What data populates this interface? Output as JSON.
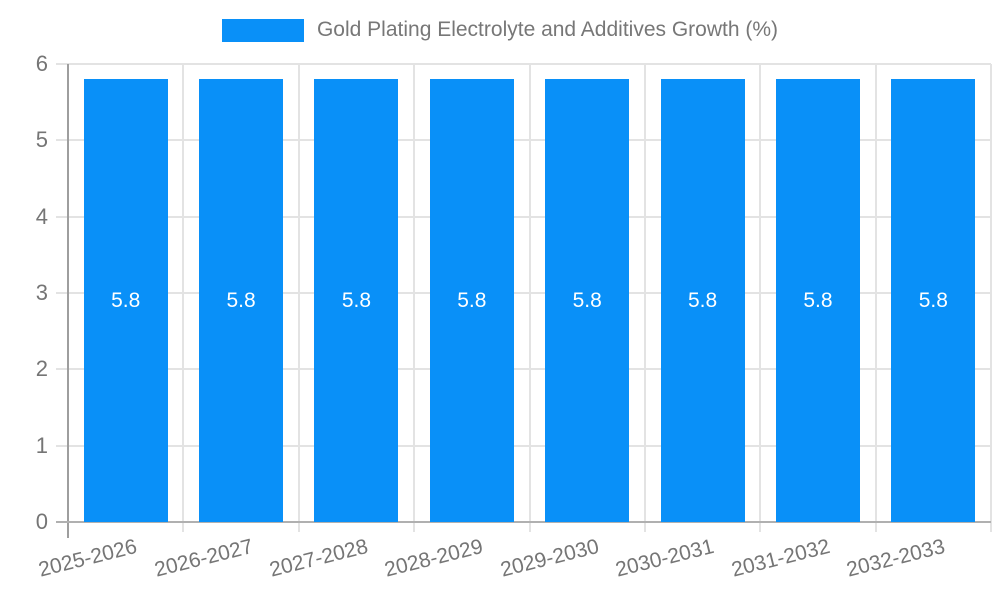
{
  "chart_data": {
    "type": "bar",
    "title": "Gold Plating Electrolyte and Additives Growth (%)",
    "legend": {
      "position": "top",
      "items": [
        {
          "label": "Gold Plating Electrolyte and Additives Growth (%)",
          "swatch_color": "#0990f8"
        }
      ]
    },
    "categories": [
      "2025-2026",
      "2026-2027",
      "2027-2028",
      "2028-2029",
      "2029-2030",
      "2030-2031",
      "2031-2032",
      "2032-2033"
    ],
    "values": [
      5.8,
      5.8,
      5.8,
      5.8,
      5.8,
      5.8,
      5.8,
      5.8
    ],
    "value_labels": [
      "5.8",
      "5.8",
      "5.8",
      "5.8",
      "5.8",
      "5.8",
      "5.8",
      "5.8"
    ],
    "xlabel": "",
    "ylabel": "",
    "ylim": [
      0,
      6
    ],
    "ytick_labels": [
      "0",
      "1",
      "2",
      "3",
      "4",
      "5",
      "6"
    ],
    "grid": true,
    "colors": {
      "bar": "#0990f8",
      "bar_value_text": "#ffffff",
      "tick_text": "#757575",
      "legend_text": "#777777",
      "gridline": "#e3e3e3",
      "y_axis_line": "#9e9e9e",
      "x_axis_line": "#b0b0b0"
    }
  }
}
